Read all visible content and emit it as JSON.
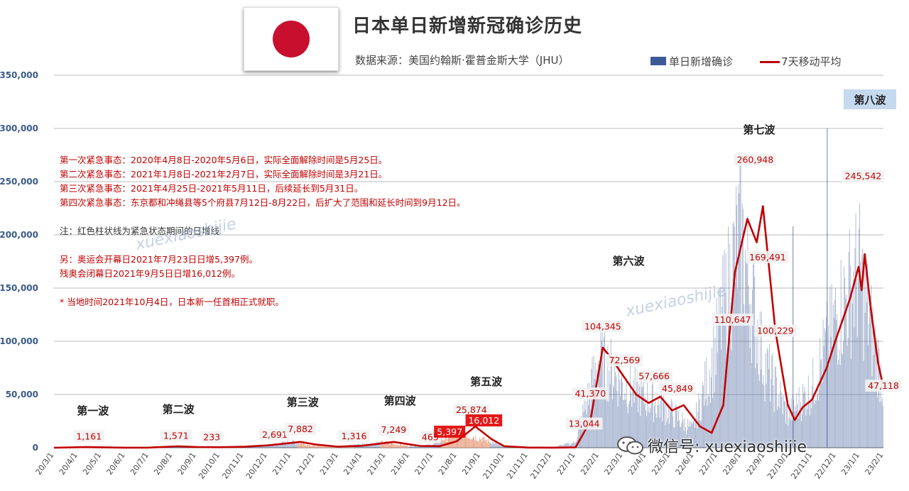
{
  "title": "日本单日新增新冠确诊历史",
  "source": "数据来源：美国约翰斯·霍普金斯大学（JHU）",
  "legend": {
    "bar_label": "单日新增确诊",
    "line_label": "7天移动平均"
  },
  "notes": [
    "第一次紧急事态：2020年4月8日-2020年5月6日，实际全面解除时间是5月25日。",
    "第二次紧急事态：2021年1月8日-2021年2月7日，实际全面解除时间是3月21日。",
    "第三次紧急事态：2021年4月25日-2021年5月11日，后续延长到5月31日。",
    "第四次紧急事态：东京都和冲绳县等5个府县7月12日-8月22日，后扩大了范围和延长时间到9月12日。",
    "",
    "注：红色柱状线为紧急状态期间的日增线",
    "",
    "另：奥运会开幕日2021年7月23日日增5,397例。",
    "残奥会闭幕日2021年9月5日日增16,012例。",
    "",
    "* 当地时间2021年10月4日，日本新一任首相正式就职。"
  ],
  "watermark": "xuexiaoshijie",
  "wechat_label": "微信号: xuexiaoshijie",
  "colors": {
    "bar": "#3d5a96",
    "bar_emergency": "#e89a7a",
    "line": "#c00000",
    "label_bg": "#f2f2f2",
    "label_red_bg": "#e00000"
  },
  "chart_data": {
    "type": "bar",
    "title": "日本单日新增新冠确诊历史",
    "ylim": [
      0,
      350000
    ],
    "yticks": [
      0,
      50000,
      100000,
      150000,
      200000,
      250000,
      300000,
      350000
    ],
    "ytick_labels": [
      "0",
      "50,000",
      "100,000",
      "150,000",
      "200,000",
      "250,000",
      "300,000",
      "350,000"
    ],
    "x_start": "2020-03-01",
    "x_end": "2023-02-01",
    "xtick_labels": [
      "20/3/1",
      "20/4/1",
      "20/5/1",
      "20/6/1",
      "20/7/1",
      "20/8/1",
      "20/9/1",
      "20/10/1",
      "20/11/1",
      "20/12/1",
      "21/1/1",
      "21/2/1",
      "21/3/1",
      "21/4/1",
      "21/5/1",
      "21/6/1",
      "21/7/1",
      "21/8/1",
      "21/9/1",
      "21/10/1",
      "21/11/1",
      "21/12/1",
      "22/1/1",
      "22/2/1",
      "22/3/1",
      "22/4/1",
      "22/5/1",
      "22/6/1",
      "22/7/1",
      "22/8/1",
      "22/9/1",
      "22/10/1",
      "22/11/1",
      "22/12/1",
      "23/1/1",
      "23/2/1"
    ],
    "series": [
      {
        "name": "单日新增确诊",
        "kind": "bar",
        "monthly_values": [
          60,
          500,
          300,
          50,
          200,
          1100,
          600,
          500,
          1300,
          2300,
          5500,
          1800,
          1000,
          3500,
          5000,
          1800,
          2500,
          15000,
          9000,
          800,
          150,
          150,
          5000,
          85000,
          60000,
          47000,
          35000,
          17000,
          95000,
          200000,
          80000,
          30000,
          55000,
          120000,
          165000,
          60000
        ]
      },
      {
        "name": "7天移动平均",
        "kind": "line",
        "points": [
          [
            "2020-03-01",
            0
          ],
          [
            "2020-04-12",
            600
          ],
          [
            "2020-05-01",
            400
          ],
          [
            "2020-06-01",
            40
          ],
          [
            "2020-07-01",
            150
          ],
          [
            "2020-08-07",
            1300
          ],
          [
            "2020-09-01",
            700
          ],
          [
            "2020-10-01",
            500
          ],
          [
            "2020-11-01",
            900
          ],
          [
            "2020-12-01",
            2200
          ],
          [
            "2021-01-12",
            5500
          ],
          [
            "2021-02-01",
            3000
          ],
          [
            "2021-03-01",
            1000
          ],
          [
            "2021-04-01",
            1800
          ],
          [
            "2021-05-12",
            5500
          ],
          [
            "2021-06-15",
            1700
          ],
          [
            "2021-07-10",
            1500
          ],
          [
            "2021-08-01",
            6000
          ],
          [
            "2021-08-25",
            20000
          ],
          [
            "2021-09-15",
            8000
          ],
          [
            "2021-10-01",
            1500
          ],
          [
            "2021-11-01",
            150
          ],
          [
            "2021-12-01",
            100
          ],
          [
            "2022-01-01",
            300
          ],
          [
            "2022-01-20",
            25000
          ],
          [
            "2022-02-05",
            94000
          ],
          [
            "2022-02-15",
            85000
          ],
          [
            "2022-03-01",
            70000
          ],
          [
            "2022-03-20",
            50000
          ],
          [
            "2022-04-05",
            42000
          ],
          [
            "2022-04-20",
            48000
          ],
          [
            "2022-05-05",
            35000
          ],
          [
            "2022-05-20",
            40000
          ],
          [
            "2022-06-10",
            20000
          ],
          [
            "2022-06-25",
            14000
          ],
          [
            "2022-07-10",
            40000
          ],
          [
            "2022-07-25",
            165000
          ],
          [
            "2022-08-10",
            215000
          ],
          [
            "2022-08-22",
            193000
          ],
          [
            "2022-08-30",
            227000
          ],
          [
            "2022-09-15",
            110000
          ],
          [
            "2022-10-01",
            40000
          ],
          [
            "2022-10-10",
            26000
          ],
          [
            "2022-10-20",
            38000
          ],
          [
            "2022-11-01",
            45000
          ],
          [
            "2022-11-20",
            75000
          ],
          [
            "2022-12-01",
            100000
          ],
          [
            "2022-12-20",
            140000
          ],
          [
            "2022-12-31",
            170000
          ],
          [
            "2023-01-04",
            148000
          ],
          [
            "2023-01-08",
            182000
          ],
          [
            "2023-01-15",
            135000
          ],
          [
            "2023-01-25",
            80000
          ],
          [
            "2023-01-31",
            60000
          ]
        ]
      }
    ],
    "data_labels": [
      {
        "text": "1,161",
        "date": "2020-04-15",
        "value": 1161
      },
      {
        "text": "1,571",
        "date": "2020-08-05",
        "value": 1571
      },
      {
        "text": "233",
        "date": "2020-09-20",
        "value": 233
      },
      {
        "text": "2,691",
        "date": "2020-12-10",
        "value": 2691
      },
      {
        "text": "7,882",
        "date": "2021-01-12",
        "value": 7882
      },
      {
        "text": "1,316",
        "date": "2021-03-22",
        "value": 1316
      },
      {
        "text": "7,249",
        "date": "2021-05-12",
        "value": 7249
      },
      {
        "text": "465",
        "date": "2021-06-28",
        "value": 465
      },
      {
        "text": "5,397",
        "date": "2021-07-23",
        "value": 5397,
        "highlight": true
      },
      {
        "text": "25,874",
        "date": "2021-08-20",
        "value": 25874
      },
      {
        "text": "16,012",
        "date": "2021-09-05",
        "value": 16012,
        "highlight": true
      },
      {
        "text": "13,044",
        "date": "2022-01-12",
        "value": 13044
      },
      {
        "text": "41,370",
        "date": "2022-01-20",
        "value": 41370
      },
      {
        "text": "104,345",
        "date": "2022-02-05",
        "value": 104345
      },
      {
        "text": "72,569",
        "date": "2022-03-05",
        "value": 72569
      },
      {
        "text": "57,666",
        "date": "2022-04-12",
        "value": 57666
      },
      {
        "text": "45,849",
        "date": "2022-05-12",
        "value": 45849
      },
      {
        "text": "110,647",
        "date": "2022-07-22",
        "value": 110647
      },
      {
        "text": "260,948",
        "date": "2022-08-20",
        "value": 260948
      },
      {
        "text": "169,491",
        "date": "2022-09-05",
        "value": 169491
      },
      {
        "text": "100,229",
        "date": "2022-09-15",
        "value": 100229
      },
      {
        "text": "245,542",
        "date": "2023-01-06",
        "value": 245542
      },
      {
        "text": "47,118",
        "date": "2023-02-01",
        "value": 47118
      }
    ],
    "wave_labels": [
      {
        "text": "第一波",
        "date": "2020-04-20"
      },
      {
        "text": "第二波",
        "date": "2020-08-08"
      },
      {
        "text": "第三波",
        "date": "2021-01-15"
      },
      {
        "text": "第四波",
        "date": "2021-05-20"
      },
      {
        "text": "第五波",
        "date": "2021-09-08"
      },
      {
        "text": "第六波",
        "date": "2022-03-10"
      },
      {
        "text": "第七波",
        "date": "2022-08-25"
      },
      {
        "text": "第八波",
        "date": "2023-01-20"
      }
    ]
  }
}
